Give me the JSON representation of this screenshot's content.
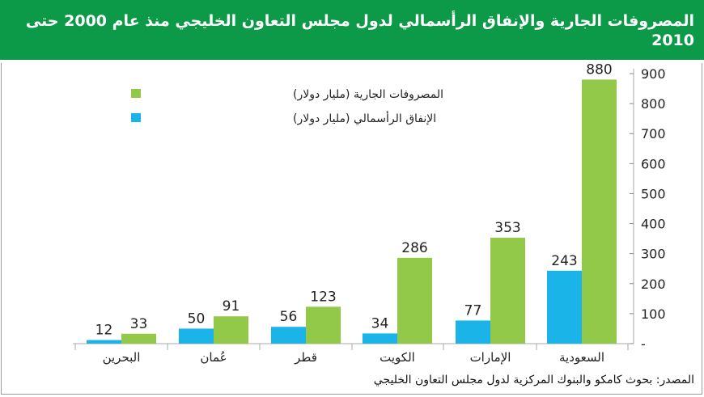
{
  "header": {
    "title": "المصروفات الجارية والإنفاق الرأسمالي لدول مجلس التعاون الخليجي منذ عام 2000 حتى 2010"
  },
  "source": "المصدر: بحوث كامكو والبنوك المركزية لدول مجلس التعاون الخليجي",
  "colors": {
    "current": "#93c948",
    "capital": "#1ab4e8",
    "header": "#0d9a48"
  },
  "chart_data": {
    "type": "bar",
    "title": "المصروفات الجارية والإنفاق الرأسمالي لدول مجلس التعاون الخليجي منذ عام 2000 حتى 2010",
    "categories": [
      "السعودية",
      "الإمارات",
      "الكويت",
      "قطر",
      "عُمان",
      "البحرين"
    ],
    "series": [
      {
        "name": "المصروفات الجارية (مليار دولار)",
        "values": [
          880,
          353,
          286,
          123,
          91,
          33
        ]
      },
      {
        "name": "الإنفاق الرأسمالي (مليار دولار)",
        "values": [
          243,
          77,
          34,
          56,
          50,
          12
        ]
      }
    ],
    "yticks": [
      "-",
      "100",
      "200",
      "300",
      "400",
      "500",
      "600",
      "700",
      "800",
      "900"
    ],
    "ylim": [
      0,
      900
    ],
    "yaxis_position": "right",
    "category_order": "right-to-left",
    "legend_placement": "top-left",
    "grid": false
  }
}
